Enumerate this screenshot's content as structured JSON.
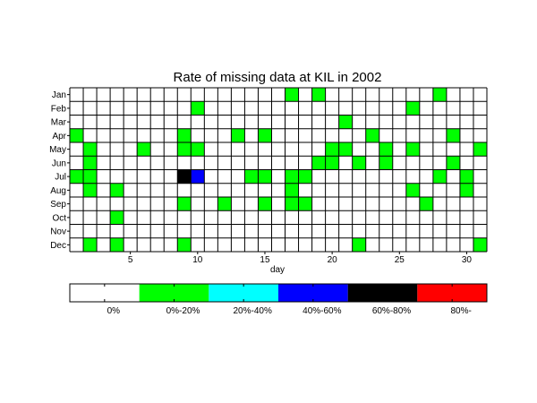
{
  "chart_data": {
    "type": "heatmap",
    "title": "Rate of missing data at KIL in 2002",
    "xlabel": "day",
    "ylabel": "",
    "x_range": [
      1,
      31
    ],
    "x_ticks": [
      5,
      10,
      15,
      20,
      25,
      30
    ],
    "months": [
      "Jan",
      "Feb",
      "Mar",
      "Apr",
      "May",
      "Jun",
      "Jul",
      "Aug",
      "Sep",
      "Oct",
      "Nov",
      "Dec"
    ],
    "grid": true,
    "legend": {
      "placement": "bottom",
      "bins": [
        {
          "label": "0%",
          "color": "#ffffff"
        },
        {
          "label": "0%-20%",
          "color": "#00ff00"
        },
        {
          "label": "20%-40%",
          "color": "#00ffff"
        },
        {
          "label": "40%-60%",
          "color": "#0000ff"
        },
        {
          "label": "60%-80%",
          "color": "#000000"
        },
        {
          "label": "80%-",
          "color": "#ff0000"
        }
      ]
    },
    "cells": [
      {
        "month": "Jan",
        "day": 17,
        "bin": 1
      },
      {
        "month": "Jan",
        "day": 19,
        "bin": 1
      },
      {
        "month": "Jan",
        "day": 28,
        "bin": 1
      },
      {
        "month": "Feb",
        "day": 10,
        "bin": 1
      },
      {
        "month": "Feb",
        "day": 26,
        "bin": 1
      },
      {
        "month": "Mar",
        "day": 21,
        "bin": 1
      },
      {
        "month": "Apr",
        "day": 1,
        "bin": 1
      },
      {
        "month": "Apr",
        "day": 9,
        "bin": 1
      },
      {
        "month": "Apr",
        "day": 13,
        "bin": 1
      },
      {
        "month": "Apr",
        "day": 15,
        "bin": 1
      },
      {
        "month": "Apr",
        "day": 23,
        "bin": 1
      },
      {
        "month": "Apr",
        "day": 29,
        "bin": 1
      },
      {
        "month": "May",
        "day": 2,
        "bin": 1
      },
      {
        "month": "May",
        "day": 6,
        "bin": 1
      },
      {
        "month": "May",
        "day": 9,
        "bin": 1
      },
      {
        "month": "May",
        "day": 10,
        "bin": 1
      },
      {
        "month": "May",
        "day": 20,
        "bin": 1
      },
      {
        "month": "May",
        "day": 21,
        "bin": 1
      },
      {
        "month": "May",
        "day": 24,
        "bin": 1
      },
      {
        "month": "May",
        "day": 26,
        "bin": 1
      },
      {
        "month": "May",
        "day": 31,
        "bin": 1
      },
      {
        "month": "Jun",
        "day": 2,
        "bin": 1
      },
      {
        "month": "Jun",
        "day": 19,
        "bin": 1
      },
      {
        "month": "Jun",
        "day": 20,
        "bin": 1
      },
      {
        "month": "Jun",
        "day": 22,
        "bin": 1
      },
      {
        "month": "Jun",
        "day": 24,
        "bin": 1
      },
      {
        "month": "Jun",
        "day": 29,
        "bin": 1
      },
      {
        "month": "Jul",
        "day": 1,
        "bin": 1
      },
      {
        "month": "Jul",
        "day": 2,
        "bin": 1
      },
      {
        "month": "Jul",
        "day": 9,
        "bin": 4
      },
      {
        "month": "Jul",
        "day": 10,
        "bin": 3
      },
      {
        "month": "Jul",
        "day": 14,
        "bin": 1
      },
      {
        "month": "Jul",
        "day": 15,
        "bin": 1
      },
      {
        "month": "Jul",
        "day": 17,
        "bin": 1
      },
      {
        "month": "Jul",
        "day": 18,
        "bin": 1
      },
      {
        "month": "Jul",
        "day": 28,
        "bin": 1
      },
      {
        "month": "Jul",
        "day": 30,
        "bin": 1
      },
      {
        "month": "Aug",
        "day": 2,
        "bin": 1
      },
      {
        "month": "Aug",
        "day": 4,
        "bin": 1
      },
      {
        "month": "Aug",
        "day": 17,
        "bin": 1
      },
      {
        "month": "Aug",
        "day": 26,
        "bin": 1
      },
      {
        "month": "Aug",
        "day": 30,
        "bin": 1
      },
      {
        "month": "Sep",
        "day": 9,
        "bin": 1
      },
      {
        "month": "Sep",
        "day": 12,
        "bin": 1
      },
      {
        "month": "Sep",
        "day": 15,
        "bin": 1
      },
      {
        "month": "Sep",
        "day": 17,
        "bin": 1
      },
      {
        "month": "Sep",
        "day": 18,
        "bin": 1
      },
      {
        "month": "Sep",
        "day": 27,
        "bin": 1
      },
      {
        "month": "Oct",
        "day": 4,
        "bin": 1
      },
      {
        "month": "Dec",
        "day": 2,
        "bin": 1
      },
      {
        "month": "Dec",
        "day": 4,
        "bin": 1
      },
      {
        "month": "Dec",
        "day": 9,
        "bin": 1
      },
      {
        "month": "Dec",
        "day": 22,
        "bin": 1
      },
      {
        "month": "Dec",
        "day": 31,
        "bin": 1
      }
    ]
  }
}
